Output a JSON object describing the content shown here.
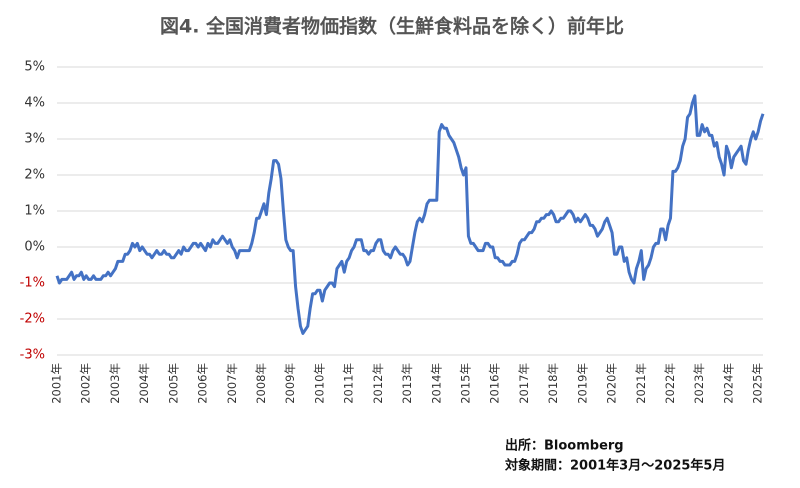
{
  "chart_data": {
    "type": "line",
    "title": "図4. 全国消費者物価指数（生鮮食料品を除く）前年比",
    "source": "出所：Bloomberg",
    "period": "対象期間：2001年3月～2025年5月",
    "categories": [
      "2001年",
      null,
      null,
      null,
      null,
      null,
      null,
      null,
      null,
      null,
      null,
      null,
      "2002年",
      null,
      null,
      null,
      null,
      null,
      null,
      null,
      null,
      null,
      null,
      null,
      "2003年",
      null,
      null,
      null,
      null,
      null,
      null,
      null,
      null,
      null,
      null,
      null,
      "2004年",
      null,
      null,
      null,
      null,
      null,
      null,
      null,
      null,
      null,
      null,
      null,
      "2005年",
      null,
      null,
      null,
      null,
      null,
      null,
      null,
      null,
      null,
      null,
      null,
      "2006年",
      null,
      null,
      null,
      null,
      null,
      null,
      null,
      null,
      null,
      null,
      null,
      "2007年",
      null,
      null,
      null,
      null,
      null,
      null,
      null,
      null,
      null,
      null,
      null,
      "2008年",
      null,
      null,
      null,
      null,
      null,
      null,
      null,
      null,
      null,
      null,
      null,
      "2009年",
      null,
      null,
      null,
      null,
      null,
      null,
      null,
      null,
      null,
      null,
      null,
      "2010年",
      null,
      null,
      null,
      null,
      null,
      null,
      null,
      null,
      null,
      null,
      null,
      "2011年",
      null,
      null,
      null,
      null,
      null,
      null,
      null,
      null,
      null,
      null,
      null,
      "2012年",
      null,
      null,
      null,
      null,
      null,
      null,
      null,
      null,
      null,
      null,
      null,
      "2013年",
      null,
      null,
      null,
      null,
      null,
      null,
      null,
      null,
      null,
      null,
      null,
      "2014年",
      null,
      null,
      null,
      null,
      null,
      null,
      null,
      null,
      null,
      null,
      null,
      "2015年",
      null,
      null,
      null,
      null,
      null,
      null,
      null,
      null,
      null,
      null,
      null,
      "2016年",
      null,
      null,
      null,
      null,
      null,
      null,
      null,
      null,
      null,
      null,
      null,
      "2017年",
      null,
      null,
      null,
      null,
      null,
      null,
      null,
      null,
      null,
      null,
      null,
      "2018年",
      null,
      null,
      null,
      null,
      null,
      null,
      null,
      null,
      null,
      null,
      null,
      "2019年",
      null,
      null,
      null,
      null,
      null,
      null,
      null,
      null,
      null,
      null,
      null,
      "2020年",
      null,
      null,
      null,
      null,
      null,
      null,
      null,
      null,
      null,
      null,
      null,
      "2021年",
      null,
      null,
      null,
      null,
      null,
      null,
      null,
      null,
      null,
      null,
      null,
      "2022年",
      null,
      null,
      null,
      null,
      null,
      null,
      null,
      null,
      null,
      null,
      null,
      "2023年",
      null,
      null,
      null,
      null,
      null,
      null,
      null,
      null,
      null,
      null,
      null,
      "2024年",
      null,
      null,
      null,
      null,
      null,
      null,
      null,
      null,
      null,
      null,
      null,
      "2025年",
      null,
      null
    ],
    "series": [
      {
        "color": "#4472c4",
        "values": [
          -0.8,
          -1.0,
          -0.9,
          -0.9,
          -0.9,
          -0.8,
          -0.7,
          -0.9,
          -0.8,
          -0.8,
          -0.7,
          -0.9,
          -0.8,
          -0.9,
          -0.9,
          -0.8,
          -0.9,
          -0.9,
          -0.9,
          -0.8,
          -0.8,
          -0.7,
          -0.8,
          -0.7,
          -0.6,
          -0.4,
          -0.4,
          -0.4,
          -0.2,
          -0.2,
          -0.1,
          0.1,
          0.0,
          0.1,
          -0.1,
          0.0,
          -0.1,
          -0.2,
          -0.2,
          -0.3,
          -0.2,
          -0.1,
          -0.2,
          -0.2,
          -0.1,
          -0.2,
          -0.2,
          -0.3,
          -0.3,
          -0.2,
          -0.1,
          -0.2,
          0.0,
          -0.1,
          -0.1,
          0.0,
          0.1,
          0.1,
          0.0,
          0.1,
          0.0,
          -0.1,
          0.1,
          0.0,
          0.2,
          0.1,
          0.1,
          0.2,
          0.3,
          0.2,
          0.1,
          0.2,
          0.0,
          -0.1,
          -0.3,
          -0.1,
          -0.1,
          -0.1,
          -0.1,
          -0.1,
          0.1,
          0.4,
          0.8,
          0.8,
          1.0,
          1.2,
          0.9,
          1.5,
          1.9,
          2.4,
          2.4,
          2.3,
          1.9,
          1.0,
          0.2,
          0.0,
          -0.1,
          -0.1,
          -1.1,
          -1.7,
          -2.2,
          -2.4,
          -2.3,
          -2.2,
          -1.7,
          -1.3,
          -1.3,
          -1.2,
          -1.2,
          -1.5,
          -1.2,
          -1.1,
          -1.0,
          -1.0,
          -1.1,
          -0.6,
          -0.5,
          -0.4,
          -0.7,
          -0.4,
          -0.3,
          -0.1,
          0.0,
          0.2,
          0.2,
          0.2,
          -0.1,
          -0.1,
          -0.2,
          -0.1,
          -0.1,
          0.1,
          0.2,
          0.2,
          -0.1,
          -0.2,
          -0.2,
          -0.3,
          -0.1,
          0.0,
          -0.1,
          -0.2,
          -0.2,
          -0.3,
          -0.5,
          -0.4,
          0.0,
          0.4,
          0.7,
          0.8,
          0.7,
          0.9,
          1.2,
          1.3,
          1.3,
          1.3,
          1.3,
          3.2,
          3.4,
          3.3,
          3.3,
          3.1,
          3.0,
          2.9,
          2.7,
          2.5,
          2.2,
          2.0,
          2.2,
          0.3,
          0.1,
          0.1,
          0.0,
          -0.1,
          -0.1,
          -0.1,
          0.1,
          0.1,
          0.0,
          0.0,
          -0.3,
          -0.3,
          -0.4,
          -0.4,
          -0.5,
          -0.5,
          -0.5,
          -0.4,
          -0.4,
          -0.2,
          0.1,
          0.2,
          0.2,
          0.3,
          0.4,
          0.4,
          0.5,
          0.7,
          0.7,
          0.8,
          0.8,
          0.9,
          0.9,
          1.0,
          0.9,
          0.7,
          0.7,
          0.8,
          0.8,
          0.9,
          1.0,
          1.0,
          0.9,
          0.7,
          0.8,
          0.7,
          0.8,
          0.9,
          0.8,
          0.6,
          0.6,
          0.5,
          0.3,
          0.4,
          0.5,
          0.7,
          0.8,
          0.6,
          0.4,
          -0.2,
          -0.2,
          0.0,
          0.0,
          -0.4,
          -0.3,
          -0.7,
          -0.9,
          -1.0,
          -0.6,
          -0.4,
          -0.1,
          -0.9,
          -0.6,
          -0.5,
          -0.3,
          0.0,
          0.1,
          0.1,
          0.5,
          0.5,
          0.2,
          0.6,
          0.8,
          2.1,
          2.1,
          2.2,
          2.4,
          2.8,
          3.0,
          3.6,
          3.7,
          4.0,
          4.2,
          3.1,
          3.1,
          3.4,
          3.2,
          3.3,
          3.1,
          3.1,
          2.8,
          2.9,
          2.5,
          2.3,
          2.0,
          2.8,
          2.6,
          2.2,
          2.5,
          2.6,
          2.7,
          2.8,
          2.4,
          2.3,
          2.7,
          3.0,
          3.2,
          3.0,
          3.2,
          3.5,
          3.7
        ]
      }
    ],
    "ylim": [
      -3,
      5
    ],
    "yticks": [
      {
        "value": -3,
        "label": "-3%"
      },
      {
        "value": -2,
        "label": "-2%"
      },
      {
        "value": -1,
        "label": "-1%"
      },
      {
        "value": 0,
        "label": "0%"
      },
      {
        "value": 1,
        "label": "1%"
      },
      {
        "value": 2,
        "label": "2%"
      },
      {
        "value": 3,
        "label": "3%"
      },
      {
        "value": 4,
        "label": "4%"
      },
      {
        "value": 5,
        "label": "5%"
      }
    ],
    "negative_tick_color": "#c00000",
    "grid": true
  }
}
